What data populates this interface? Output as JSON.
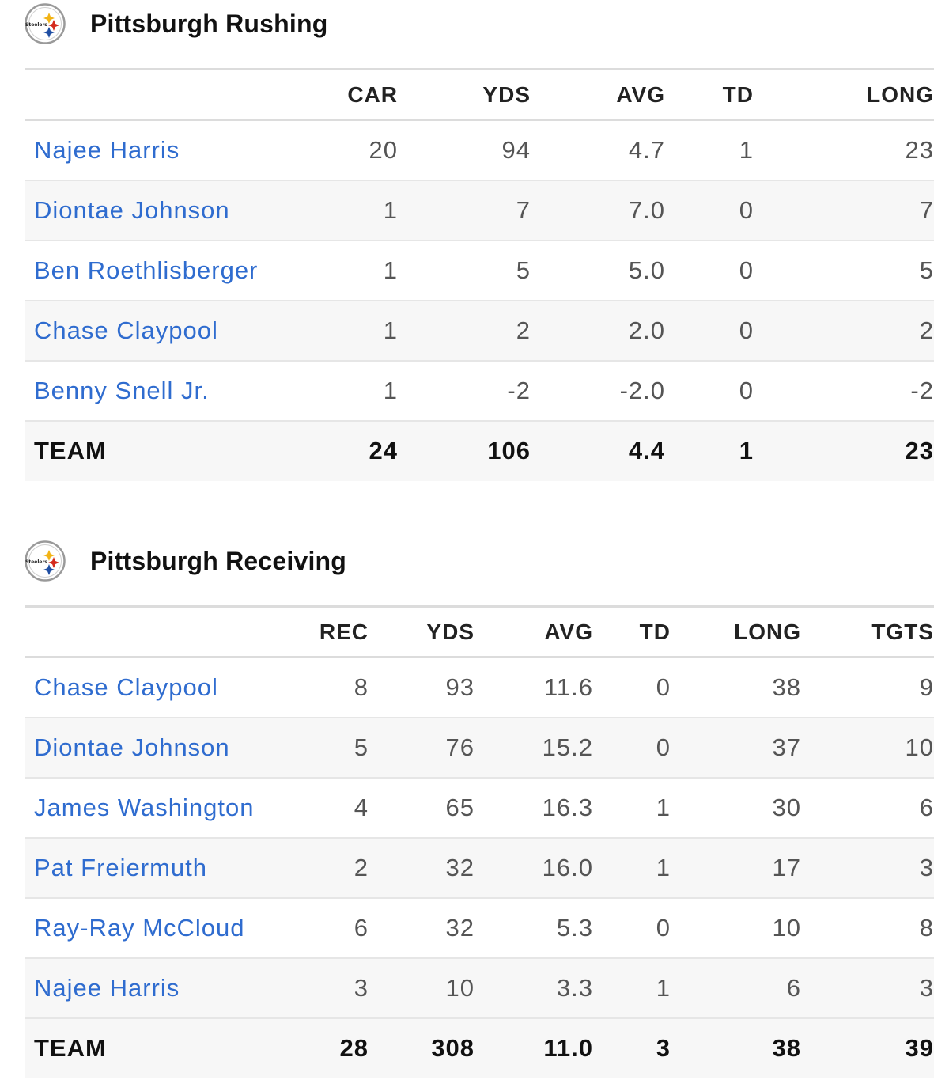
{
  "rushing": {
    "title": "Pittsburgh Rushing",
    "logo_icon": "steelers-logo-icon",
    "columns": [
      "CAR",
      "YDS",
      "AVG",
      "TD",
      "LONG"
    ],
    "rows": [
      {
        "name": "Najee Harris",
        "stats": [
          "20",
          "94",
          "4.7",
          "1",
          "23"
        ]
      },
      {
        "name": "Diontae Johnson",
        "stats": [
          "1",
          "7",
          "7.0",
          "0",
          "7"
        ]
      },
      {
        "name": "Ben Roethlisberger",
        "stats": [
          "1",
          "5",
          "5.0",
          "0",
          "5"
        ]
      },
      {
        "name": "Chase Claypool",
        "stats": [
          "1",
          "2",
          "2.0",
          "0",
          "2"
        ]
      },
      {
        "name": "Benny Snell Jr.",
        "stats": [
          "1",
          "-2",
          "-2.0",
          "0",
          "-2"
        ]
      }
    ],
    "team": {
      "name": "TEAM",
      "stats": [
        "24",
        "106",
        "4.4",
        "1",
        "23"
      ]
    }
  },
  "receiving": {
    "title": "Pittsburgh Receiving",
    "logo_icon": "steelers-logo-icon",
    "columns": [
      "REC",
      "YDS",
      "AVG",
      "TD",
      "LONG",
      "TGTS"
    ],
    "rows": [
      {
        "name": "Chase Claypool",
        "stats": [
          "8",
          "93",
          "11.6",
          "0",
          "38",
          "9"
        ]
      },
      {
        "name": "Diontae Johnson",
        "stats": [
          "5",
          "76",
          "15.2",
          "0",
          "37",
          "10"
        ]
      },
      {
        "name": "James Washington",
        "stats": [
          "4",
          "65",
          "16.3",
          "1",
          "30",
          "6"
        ]
      },
      {
        "name": "Pat Freiermuth",
        "stats": [
          "2",
          "32",
          "16.0",
          "1",
          "17",
          "3"
        ]
      },
      {
        "name": "Ray-Ray McCloud",
        "stats": [
          "6",
          "32",
          "5.3",
          "0",
          "10",
          "8"
        ]
      },
      {
        "name": "Najee Harris",
        "stats": [
          "3",
          "10",
          "3.3",
          "1",
          "6",
          "3"
        ]
      }
    ],
    "team": {
      "name": "TEAM",
      "stats": [
        "28",
        "308",
        "11.0",
        "3",
        "38",
        "39"
      ]
    }
  },
  "colors": {
    "link": "#2f6ccf",
    "header_text": "#222222",
    "stripe": "#f7f7f7"
  }
}
